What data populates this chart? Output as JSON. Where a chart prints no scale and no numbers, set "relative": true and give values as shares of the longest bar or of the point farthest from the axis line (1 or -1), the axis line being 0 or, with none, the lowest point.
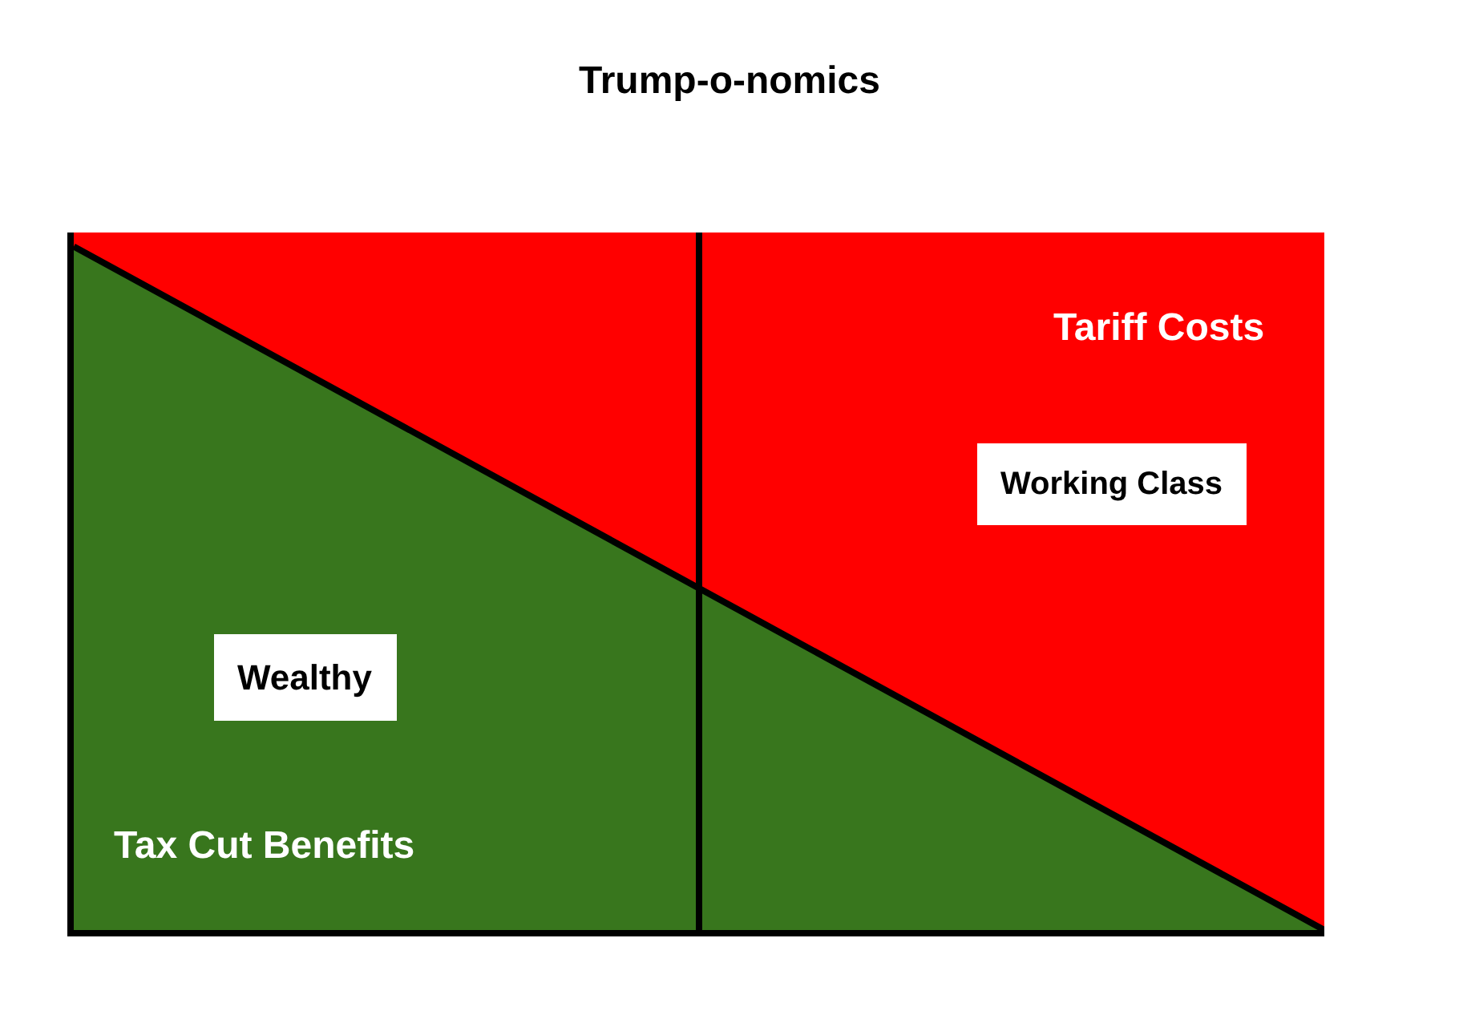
{
  "chart_data": {
    "type": "area",
    "title": "Trump-o-nomics",
    "relative": true,
    "stacked": true,
    "categories": [
      null,
      null,
      null
    ],
    "series": [
      {
        "color": "#38761d",
        "values": [
          0.98,
          0.49,
          0
        ]
      },
      {
        "color": "#ff0000",
        "values": [
          0.02,
          0.51,
          1
        ]
      }
    ],
    "ref_lines": [
      {
        "axis": "x",
        "color": "#000000"
      }
    ],
    "annotations": [
      "Tariff Costs",
      "Working Class",
      "Wealthy",
      "Tax Cut Benefits"
    ]
  }
}
